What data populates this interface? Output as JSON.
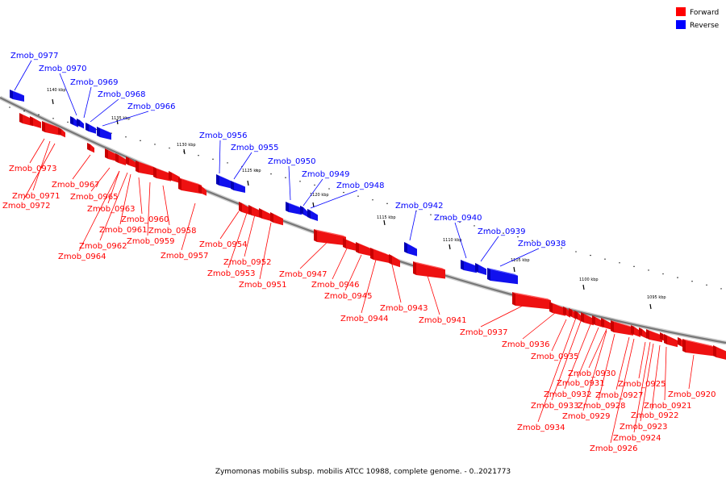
{
  "caption": "Zymomonas mobilis subsp. mobilis ATCC 10988, complete genome. - 0..2021773",
  "legend": [
    {
      "label": "Forward",
      "color": "#ff0000"
    },
    {
      "label": "Reverse",
      "color": "#0000ff"
    }
  ],
  "colors": {
    "forward_light": "#ff5a5a",
    "forward_dark": "#c80000",
    "reverse_light": "#4d4dff",
    "reverse_dark": "#0000b4",
    "backbone": "#777777"
  },
  "ticks": [
    "1140 kbp",
    "1135 kbp",
    "1130 kbp",
    "1125 kbp",
    "1120 kbp",
    "1115 kbp",
    "1110 kbp",
    "1105 kbp",
    "1100 kbp",
    "1095 kbp"
  ],
  "forward_genes": [
    "Zmob_0973",
    "Zmob_0971",
    "Zmob_0972",
    "Zmob_0967",
    "Zmob_0965",
    "Zmob_0963",
    "Zmob_0960",
    "Zmob_0961",
    "Zmob_0962",
    "Zmob_0959",
    "Zmob_0958",
    "Zmob_0964",
    "Zmob_0957",
    "Zmob_0954",
    "Zmob_0952",
    "Zmob_0953",
    "Zmob_0951",
    "Zmob_0947",
    "Zmob_0946",
    "Zmob_0945",
    "Zmob_0944",
    "Zmob_0943",
    "Zmob_0941",
    "Zmob_0937",
    "Zmob_0936",
    "Zmob_0935",
    "Zmob_0930",
    "Zmob_0931",
    "Zmob_0932",
    "Zmob_0933",
    "Zmob_0934",
    "Zmob_0928",
    "Zmob_0929",
    "Zmob_0927",
    "Zmob_0925",
    "Zmob_0921",
    "Zmob_0922",
    "Zmob_0923",
    "Zmob_0924",
    "Zmob_0926",
    "Zmob_0920"
  ],
  "reverse_genes": [
    "Zmob_0977",
    "Zmob_0970",
    "Zmob_0969",
    "Zmob_0968",
    "Zmob_0966",
    "Zmob_0956",
    "Zmob_0955",
    "Zmob_0950",
    "Zmob_0949",
    "Zmob_0948",
    "Zmob_0942",
    "Zmob_0940",
    "Zmob_0939",
    "Zmob_0938"
  ]
}
